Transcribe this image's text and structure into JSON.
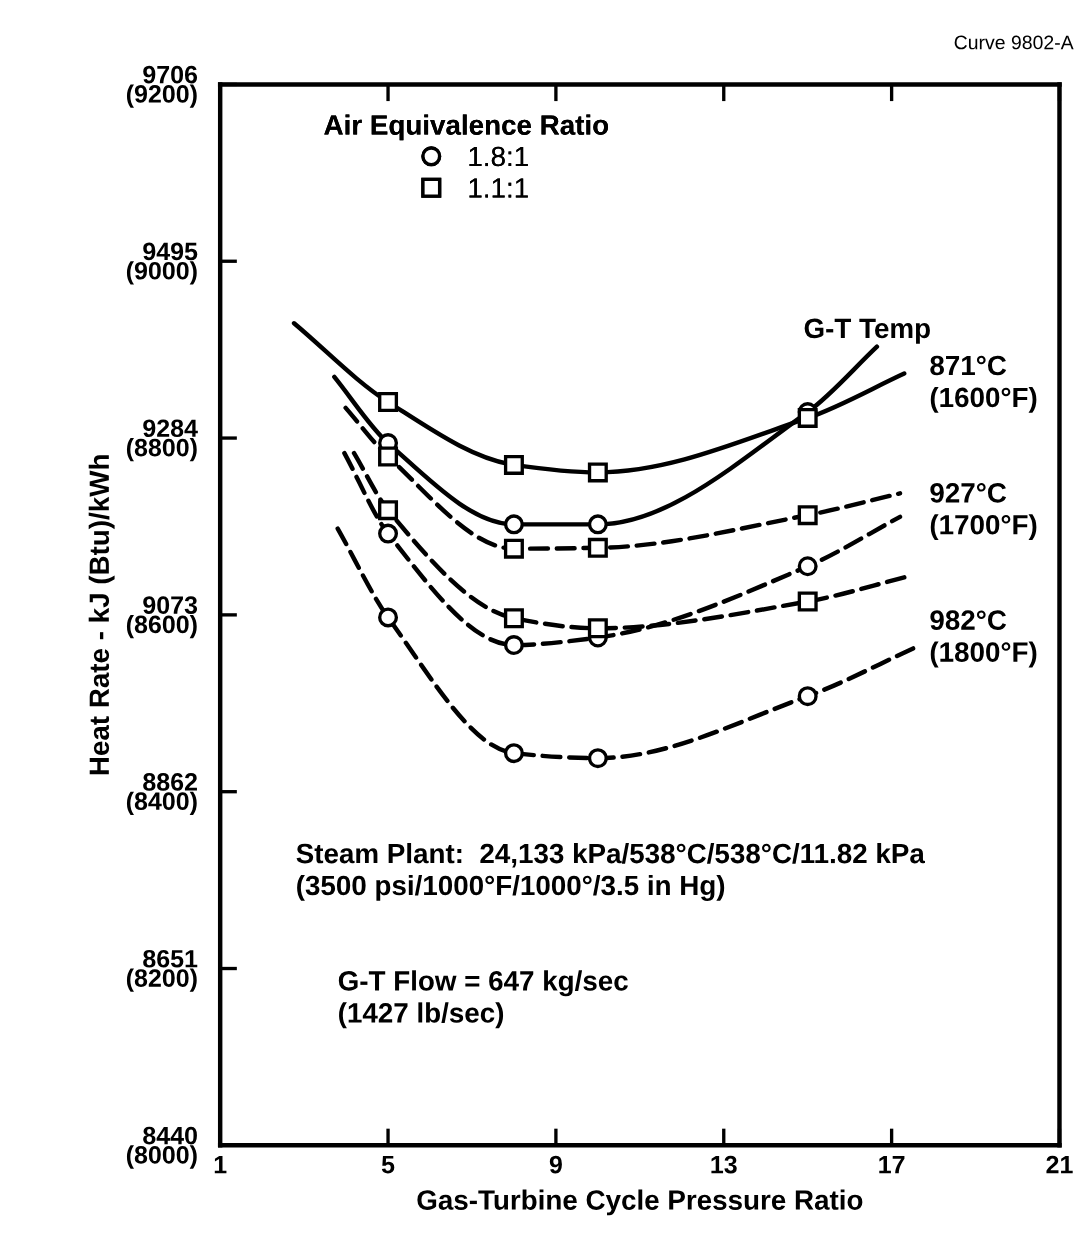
{
  "chart_data": {
    "type": "line",
    "xlabel": "Gas-Turbine Cycle Pressure Ratio",
    "y2label": "Heat Rate - kJ (Btu)/kWh",
    "legend_title": "Air Equivalence Ratio",
    "xlim": [
      1,
      21
    ],
    "xticks": [
      1,
      5,
      9,
      13,
      17,
      21
    ],
    "ylim": [
      8440,
      9706
    ],
    "yticks": [
      8440,
      8651,
      8862,
      9073,
      9284,
      9495,
      9706
    ],
    "y2lim": [
      8000,
      9200
    ],
    "y2ticks": [
      {
        "value": 8000,
        "label": "(8000)"
      },
      {
        "value": 8200,
        "label": "(8200)"
      },
      {
        "value": 8400,
        "label": "(8400)"
      },
      {
        "value": 8600,
        "label": "(8600)"
      },
      {
        "value": 8800,
        "label": "(8800)"
      },
      {
        "value": 9000,
        "label": "(9000)"
      },
      {
        "value": 9200,
        "label": "(9200)"
      }
    ],
    "grid": false,
    "legend": "top left",
    "series": [
      {
        "color": "#000000",
        "line_style": "solid",
        "marker": "none",
        "x": [
          2.76,
          5,
          8,
          10,
          15,
          17.3
        ],
        "values": [
          9421,
          9327,
          9252,
          9243,
          9308,
          9361
        ]
      },
      {
        "color": "#000000",
        "line_style": "solid",
        "marker": "none",
        "x": [
          3.72,
          5,
          8,
          10,
          15,
          16.65
        ],
        "values": [
          9357,
          9278,
          9181,
          9181,
          9315,
          9393
        ]
      },
      {
        "color": "#000000",
        "line_style": "dashed",
        "marker": "none",
        "x": [
          3.99,
          5,
          8,
          10,
          15,
          17.2
        ],
        "values": [
          9320,
          9262,
          9152,
          9153,
          9192,
          9218
        ]
      },
      {
        "color": "#000000",
        "line_style": "dashed",
        "marker": "none",
        "x": [
          3.96,
          5,
          8,
          10,
          15,
          17.2
        ],
        "values": [
          9266,
          9170,
          9037,
          9046,
          9131,
          9190
        ]
      },
      {
        "color": "#000000",
        "line_style": "dashed",
        "marker": "none",
        "x": [
          4.19,
          5,
          8,
          10,
          15,
          17.4
        ],
        "values": [
          9266,
          9198,
          9069,
          9057,
          9089,
          9119
        ]
      },
      {
        "color": "#000000",
        "line_style": "dashed",
        "marker": "none",
        "x": [
          3.8,
          5,
          8,
          10,
          15,
          17.6
        ],
        "values": [
          9176,
          9070,
          8908,
          8902,
          8976,
          9035
        ]
      },
      {
        "type": "scatter",
        "name": "1.8:1",
        "color": "#000000",
        "marker": "circle",
        "x": [
          5,
          8,
          10,
          15,
          5,
          8,
          10,
          15,
          5,
          8,
          10,
          15
        ],
        "values": [
          9278,
          9181,
          9181,
          9315,
          9170,
          9037,
          9046,
          9131,
          9070,
          8908,
          8902,
          8976
        ]
      },
      {
        "type": "scatter",
        "name": "1.1:1",
        "color": "#000000",
        "marker": "square",
        "x": [
          5,
          8,
          10,
          15,
          5,
          8,
          10,
          15,
          5,
          8,
          10,
          15
        ],
        "values": [
          9327,
          9252,
          9243,
          9308,
          9262,
          9152,
          9153,
          9192,
          9198,
          9069,
          9057,
          9089
        ]
      }
    ],
    "annotations": [
      "Curve 9802-A",
      "G-T Temp",
      "Steam Plant:  24,133 kPa/538°C/538°C/11.82 kPa\n(3500 psi/1000°F/1000°/3.5 in Hg)",
      "G-T Flow = 647 kg/sec\n(1427 lb/sec)",
      "871°C\n(1600°F)",
      "927°C\n(1700°F)",
      "982°C\n(1800°F)"
    ]
  }
}
